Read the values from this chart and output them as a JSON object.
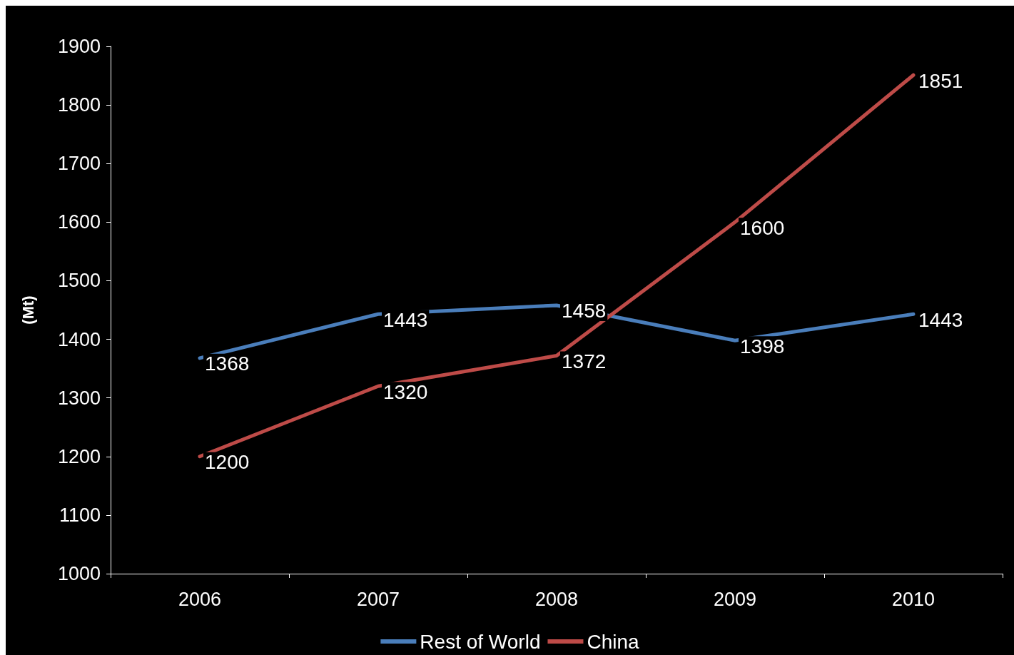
{
  "chart_data": {
    "type": "line",
    "ylabel": "(Mt)",
    "categories": [
      "2006",
      "2007",
      "2008",
      "2009",
      "2010"
    ],
    "series": [
      {
        "name": "Rest of World",
        "color": "#4a7ebb",
        "values": [
          1368,
          1443,
          1458,
          1398,
          1443
        ]
      },
      {
        "name": "China",
        "color": "#be4b48",
        "values": [
          1200,
          1320,
          1372,
          1600,
          1851
        ]
      }
    ],
    "ylim": [
      1000,
      1900
    ],
    "yticks": [
      1000,
      1100,
      1200,
      1300,
      1400,
      1500,
      1600,
      1700,
      1800,
      1900
    ],
    "grid": false,
    "legend": "bottom",
    "marker": "none",
    "line_style": "solid",
    "data_labels": true
  }
}
